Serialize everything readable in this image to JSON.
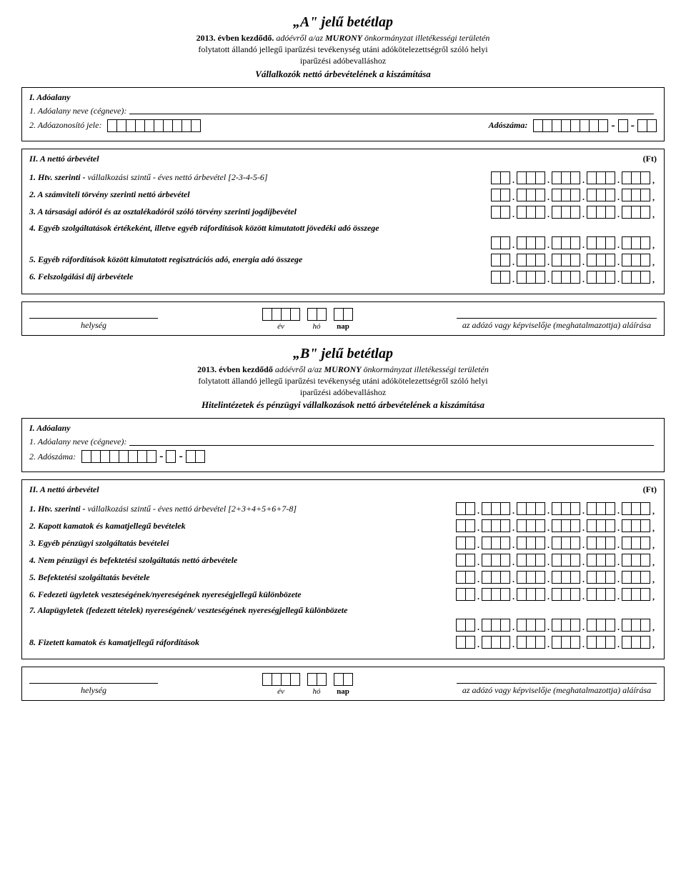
{
  "formA": {
    "title": "„A\" jelű betétlap",
    "line1_prefix": "2013. évben kezdődő.",
    "line1_rest": " adóévről a/az ",
    "org": "MURONY",
    "line1_tail": " önkormányzat illetékességi területén",
    "line2": "folytatott állandó jellegű iparűzési tevékenység utáni adókötelezettségről szóló helyi",
    "line3": "iparűzési adóbevalláshoz",
    "calc_title": "Vállalkozók nettó árbevételének a kiszámítása",
    "section1": {
      "header": "I. Adóalany",
      "name_label": "1. Adóalany neve (cégneve):",
      "idjele_label": "2. Adóazonosító jele:",
      "adoszama_label": "Adószáma:"
    },
    "section2": {
      "header": "II. A nettó árbevétel",
      "ft": "(Ft)",
      "r1_bold": "1. Htv. szerinti - ",
      "r1_rest": "vállalkozási szintű - éves nettó árbevétel [2-3-4-5-6]",
      "r2": "2. A számviteli törvény szerinti nettó árbevétel",
      "r3": "3. A társasági adóról és az osztalékadóról szóló törvény szerinti jogdíjbevétel",
      "r4": "4. Egyéb szolgáltatások értékeként, illetve egyéb ráfordítások között kimutatott jövedéki adó összege",
      "r5": "5. Egyéb ráfordítások között kimutatott regisztrációs adó, energia adó összege",
      "r6": "6. Felszolgálási díj árbevétele"
    },
    "sig": {
      "helyseg": "helység",
      "ev": "év",
      "ho": "hó",
      "nap": "nap",
      "right": "az adózó vagy képviselője (meghatalmazottja) aláírása"
    },
    "amount_groups_5": [
      2,
      3,
      3,
      3,
      3
    ]
  },
  "formB": {
    "title": "„B\" jelű betétlap",
    "line1_prefix": "2013. évben kezdődő",
    "line1_rest": " adóévről a/az ",
    "org": "MURONY",
    "line1_tail": " önkormányzat illetékességi területén",
    "line2": "folytatott állandó jellegű iparűzési tevékenység utáni adókötelezettségről szóló helyi",
    "line3": "iparűzési adóbevalláshoz",
    "calc_title": "Hitelintézetek és pénzügyi vállalkozások nettó árbevételének a kiszámítása",
    "section1": {
      "header": "I. Adóalany",
      "name_label": "1. Adóalany neve (cégneve):",
      "adoszama_label": "2. Adószáma:"
    },
    "section2": {
      "header": "II. A nettó árbevétel",
      "ft": "(Ft)",
      "r1_bold": "1. Htv. szerinti - ",
      "r1_rest": "vállalkozási szintű - éves nettó árbevétel [2+3+4+5+6+7-8]",
      "r2": "2. Kapott kamatok és kamatjellegű bevételek",
      "r3": "3. Egyéb pénzügyi szolgáltatás bevételei",
      "r4": "4. Nem pénzügyi és befektetési szolgáltatás nettó árbevétele",
      "r5": "5. Befektetési szolgáltatás bevétele",
      "r6": "6. Fedezeti ügyletek veszteségének/nyereségének nyereségjellegű különbözete",
      "r7": "7. Alapügyletek (fedezett tételek) nyereségének/ veszteségének nyereségjellegű különbözete",
      "r8": "8. Fizetett kamatok és kamatjellegű ráfordítások"
    },
    "sig": {
      "helyseg": "helység",
      "ev": "év",
      "ho": "hó",
      "nap": "nap",
      "right": "az adózó vagy képviselője (meghatalmazottja) aláírása"
    },
    "amount_groups_6": [
      2,
      3,
      3,
      3,
      3,
      3
    ]
  },
  "box_counts": {
    "adoazonosito": 10,
    "adoszam_main": 8,
    "adoszam_mid": 1,
    "adoszam_end": 2,
    "year": 4,
    "month": 2,
    "day": 2
  }
}
